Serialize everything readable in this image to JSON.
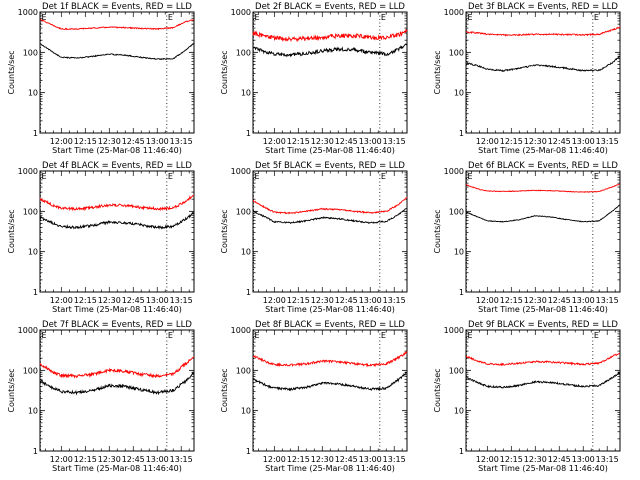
{
  "figure": {
    "ylabel": "Counts/sec",
    "xlabel": "Start Time (25-Mar-08 11:46:40)",
    "y_ticks": [
      "1",
      "10",
      "100",
      "1000"
    ],
    "x_ticks": [
      "12:00",
      "12:15",
      "12:30",
      "12:45",
      "13:00",
      "13:15"
    ],
    "markers": [
      {
        "time": "11:47",
        "label": "E"
      },
      {
        "time": "13:06",
        "label": "E"
      }
    ],
    "colors": {
      "events": "#000000",
      "lld": "#ff0000",
      "axis": "#000000",
      "marker_line": "#000000"
    }
  },
  "chart_data": [
    {
      "type": "line",
      "title": "Det 1f BLACK = Events, RED = LLD",
      "y_scale": "log",
      "ylim": [
        1,
        1000
      ],
      "x_range": [
        "11:46:40",
        "13:23"
      ],
      "series": [
        {
          "key": "lld",
          "x": [
            "11:47",
            "11:55",
            "12:00",
            "12:10",
            "12:20",
            "12:30",
            "12:40",
            "12:50",
            "13:00",
            "13:10",
            "13:18",
            "13:23"
          ],
          "values": [
            650,
            460,
            380,
            380,
            400,
            420,
            410,
            390,
            380,
            410,
            580,
            650
          ],
          "noise": 0.03
        },
        {
          "key": "events",
          "x": [
            "11:47",
            "11:55",
            "12:00",
            "12:10",
            "12:20",
            "12:30",
            "12:40",
            "12:50",
            "13:00",
            "13:10",
            "13:18",
            "13:23"
          ],
          "values": [
            160,
            100,
            75,
            72,
            80,
            90,
            85,
            75,
            68,
            70,
            115,
            170
          ],
          "noise": 0.03
        }
      ]
    },
    {
      "type": "line",
      "title": "Det 2f BLACK = Events, RED = LLD",
      "y_scale": "log",
      "ylim": [
        1,
        1000
      ],
      "x_range": [
        "11:46:40",
        "13:23"
      ],
      "series": [
        {
          "key": "lld",
          "x": [
            "11:47",
            "11:55",
            "12:00",
            "12:10",
            "12:20",
            "12:30",
            "12:40",
            "12:50",
            "13:00",
            "13:10",
            "13:18",
            "13:23"
          ],
          "values": [
            300,
            250,
            230,
            210,
            220,
            240,
            260,
            260,
            240,
            230,
            280,
            350
          ],
          "noise": 0.12
        },
        {
          "key": "events",
          "x": [
            "11:47",
            "11:55",
            "12:00",
            "12:10",
            "12:20",
            "12:30",
            "12:40",
            "12:50",
            "13:00",
            "13:10",
            "13:18",
            "13:23"
          ],
          "values": [
            130,
            100,
            90,
            85,
            95,
            110,
            120,
            115,
            100,
            90,
            120,
            160
          ],
          "noise": 0.1
        }
      ]
    },
    {
      "type": "line",
      "title": "Det 3f BLACK = Events, RED = LLD",
      "y_scale": "log",
      "ylim": [
        1,
        1000
      ],
      "x_range": [
        "11:46:40",
        "13:23"
      ],
      "series": [
        {
          "key": "lld",
          "x": [
            "11:47",
            "11:55",
            "12:00",
            "12:10",
            "12:20",
            "12:30",
            "12:40",
            "12:50",
            "13:00",
            "13:10",
            "13:18",
            "13:23"
          ],
          "values": [
            320,
            300,
            280,
            270,
            270,
            280,
            280,
            275,
            270,
            280,
            360,
            420
          ],
          "noise": 0.04
        },
        {
          "key": "events",
          "x": [
            "11:47",
            "11:55",
            "12:00",
            "12:10",
            "12:20",
            "12:30",
            "12:40",
            "12:50",
            "13:00",
            "13:10",
            "13:18",
            "13:23"
          ],
          "values": [
            55,
            45,
            38,
            35,
            40,
            48,
            45,
            40,
            35,
            36,
            55,
            80
          ],
          "noise": 0.04
        }
      ]
    },
    {
      "type": "line",
      "title": "Det 4f BLACK = Events, RED = LLD",
      "y_scale": "log",
      "ylim": [
        1,
        1000
      ],
      "x_range": [
        "11:46:40",
        "13:23"
      ],
      "series": [
        {
          "key": "lld",
          "x": [
            "11:47",
            "11:55",
            "12:00",
            "12:10",
            "12:20",
            "12:30",
            "12:40",
            "12:50",
            "13:00",
            "13:10",
            "13:18",
            "13:23"
          ],
          "values": [
            200,
            140,
            120,
            115,
            125,
            145,
            140,
            125,
            115,
            120,
            180,
            260
          ],
          "noise": 0.07
        },
        {
          "key": "events",
          "x": [
            "11:47",
            "11:55",
            "12:00",
            "12:10",
            "12:20",
            "12:30",
            "12:40",
            "12:50",
            "13:00",
            "13:10",
            "13:18",
            "13:23"
          ],
          "values": [
            70,
            50,
            42,
            40,
            45,
            55,
            52,
            46,
            40,
            42,
            65,
            95
          ],
          "noise": 0.07
        }
      ]
    },
    {
      "type": "line",
      "title": "Det 5f BLACK = Events, RED = LLD",
      "y_scale": "log",
      "ylim": [
        1,
        1000
      ],
      "x_range": [
        "11:46:40",
        "13:23"
      ],
      "series": [
        {
          "key": "lld",
          "x": [
            "11:47",
            "11:55",
            "12:00",
            "12:10",
            "12:20",
            "12:30",
            "12:40",
            "12:50",
            "13:00",
            "13:10",
            "13:18",
            "13:23"
          ],
          "values": [
            180,
            120,
            95,
            90,
            100,
            115,
            110,
            100,
            92,
            100,
            150,
            220
          ],
          "noise": 0.04
        },
        {
          "key": "events",
          "x": [
            "11:47",
            "11:55",
            "12:00",
            "12:10",
            "12:20",
            "12:30",
            "12:40",
            "12:50",
            "13:00",
            "13:10",
            "13:18",
            "13:23"
          ],
          "values": [
            100,
            70,
            55,
            52,
            58,
            70,
            66,
            58,
            52,
            56,
            85,
            120
          ],
          "noise": 0.04
        }
      ]
    },
    {
      "type": "line",
      "title": "Det 6f BLACK = Events, RED = LLD",
      "y_scale": "log",
      "ylim": [
        1,
        1000
      ],
      "x_range": [
        "11:46:40",
        "13:23"
      ],
      "series": [
        {
          "key": "lld",
          "x": [
            "11:47",
            "11:55",
            "12:00",
            "12:10",
            "12:20",
            "12:30",
            "12:40",
            "12:50",
            "13:00",
            "13:10",
            "13:18",
            "13:23"
          ],
          "values": [
            450,
            350,
            320,
            310,
            320,
            330,
            325,
            310,
            300,
            310,
            400,
            480
          ],
          "noise": 0.02
        },
        {
          "key": "events",
          "x": [
            "11:47",
            "11:55",
            "12:00",
            "12:10",
            "12:20",
            "12:30",
            "12:40",
            "12:50",
            "13:00",
            "13:10",
            "13:18",
            "13:23"
          ],
          "values": [
            95,
            70,
            58,
            55,
            62,
            78,
            72,
            62,
            55,
            58,
            100,
            145
          ],
          "noise": 0.02
        }
      ]
    },
    {
      "type": "line",
      "title": "Det 7f BLACK = Events, RED = LLD",
      "y_scale": "log",
      "ylim": [
        1,
        1000
      ],
      "x_range": [
        "11:46:40",
        "13:23"
      ],
      "series": [
        {
          "key": "lld",
          "x": [
            "11:47",
            "11:55",
            "12:00",
            "12:10",
            "12:20",
            "12:30",
            "12:40",
            "12:50",
            "13:00",
            "13:10",
            "13:18",
            "13:23"
          ],
          "values": [
            140,
            90,
            75,
            72,
            80,
            100,
            95,
            80,
            72,
            80,
            150,
            220
          ],
          "noise": 0.08
        },
        {
          "key": "events",
          "x": [
            "11:47",
            "11:55",
            "12:00",
            "12:10",
            "12:20",
            "12:30",
            "12:40",
            "12:50",
            "13:00",
            "13:10",
            "13:18",
            "13:23"
          ],
          "values": [
            55,
            36,
            30,
            28,
            32,
            42,
            40,
            33,
            28,
            32,
            55,
            88
          ],
          "noise": 0.08
        }
      ]
    },
    {
      "type": "line",
      "title": "Det 8f BLACK = Events, RED = LLD",
      "y_scale": "log",
      "ylim": [
        1,
        1000
      ],
      "x_range": [
        "11:46:40",
        "13:23"
      ],
      "series": [
        {
          "key": "lld",
          "x": [
            "11:47",
            "11:55",
            "12:00",
            "12:10",
            "12:20",
            "12:30",
            "12:40",
            "12:50",
            "13:00",
            "13:10",
            "13:18",
            "13:23"
          ],
          "values": [
            230,
            160,
            140,
            135,
            145,
            170,
            165,
            145,
            135,
            145,
            210,
            280
          ],
          "noise": 0.06
        },
        {
          "key": "events",
          "x": [
            "11:47",
            "11:55",
            "12:00",
            "12:10",
            "12:20",
            "12:30",
            "12:40",
            "12:50",
            "13:00",
            "13:10",
            "13:18",
            "13:23"
          ],
          "values": [
            60,
            42,
            36,
            34,
            38,
            48,
            46,
            40,
            34,
            36,
            60,
            90
          ],
          "noise": 0.06
        }
      ]
    },
    {
      "type": "line",
      "title": "Det 9f BLACK = Events, RED = LLD",
      "y_scale": "log",
      "ylim": [
        1,
        1000
      ],
      "x_range": [
        "11:46:40",
        "13:23"
      ],
      "series": [
        {
          "key": "lld",
          "x": [
            "11:47",
            "11:55",
            "12:00",
            "12:10",
            "12:20",
            "12:30",
            "12:40",
            "12:50",
            "13:00",
            "13:10",
            "13:18",
            "13:23"
          ],
          "values": [
            220,
            165,
            145,
            140,
            150,
            165,
            160,
            150,
            140,
            150,
            220,
            270
          ],
          "noise": 0.05
        },
        {
          "key": "events",
          "x": [
            "11:47",
            "11:55",
            "12:00",
            "12:10",
            "12:20",
            "12:30",
            "12:40",
            "12:50",
            "13:00",
            "13:10",
            "13:18",
            "13:23"
          ],
          "values": [
            65,
            48,
            40,
            38,
            42,
            52,
            50,
            44,
            40,
            42,
            65,
            90
          ],
          "noise": 0.05
        }
      ]
    }
  ]
}
